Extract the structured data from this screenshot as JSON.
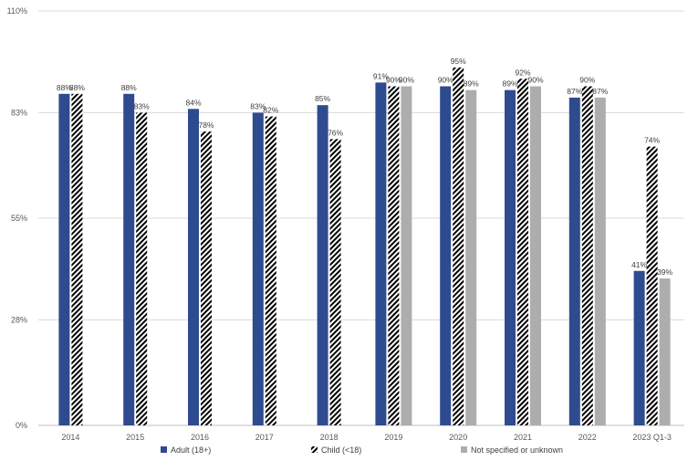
{
  "chart_data": {
    "type": "bar",
    "title": "",
    "xlabel": "",
    "ylabel": "",
    "ylim": [
      0,
      110
    ],
    "yticks": [
      0,
      28,
      55,
      83,
      110
    ],
    "ytick_labels": [
      "0%",
      "28%",
      "55%",
      "83%",
      "110%"
    ],
    "grid": "horizontal",
    "legend_position": "bottom",
    "categories": [
      "2014",
      "2015",
      "2016",
      "2017",
      "2018",
      "2019",
      "2020",
      "2021",
      "2022",
      "2023 Q1-3"
    ],
    "series": [
      {
        "name": "Adult (18+)",
        "color": "#2f4b8f",
        "pattern": "solid",
        "values": [
          88,
          88,
          84,
          83,
          85,
          91,
          90,
          89,
          87,
          41
        ],
        "labels": [
          "88%",
          "88%",
          "84%",
          "83%",
          "85%",
          "91%",
          "90%",
          "89%",
          "87%",
          "41%"
        ]
      },
      {
        "name": "Child (<18)",
        "color": "#000000",
        "pattern": "diagonal-hatch",
        "values": [
          88,
          83,
          78,
          82,
          76,
          90,
          95,
          92,
          90,
          74
        ],
        "labels": [
          "88%",
          "83%",
          "78%",
          "82%",
          "76%",
          "90%",
          "95%",
          "92%",
          "90%",
          "74%"
        ]
      },
      {
        "name": "Not specified or unknown",
        "color": "#adadad",
        "pattern": "solid",
        "values": [
          null,
          null,
          null,
          null,
          null,
          90,
          89,
          90,
          87,
          39
        ],
        "labels": [
          "",
          "",
          "",
          "",
          "",
          "90%",
          "89%",
          "90%",
          "87%",
          "39%"
        ]
      }
    ]
  }
}
